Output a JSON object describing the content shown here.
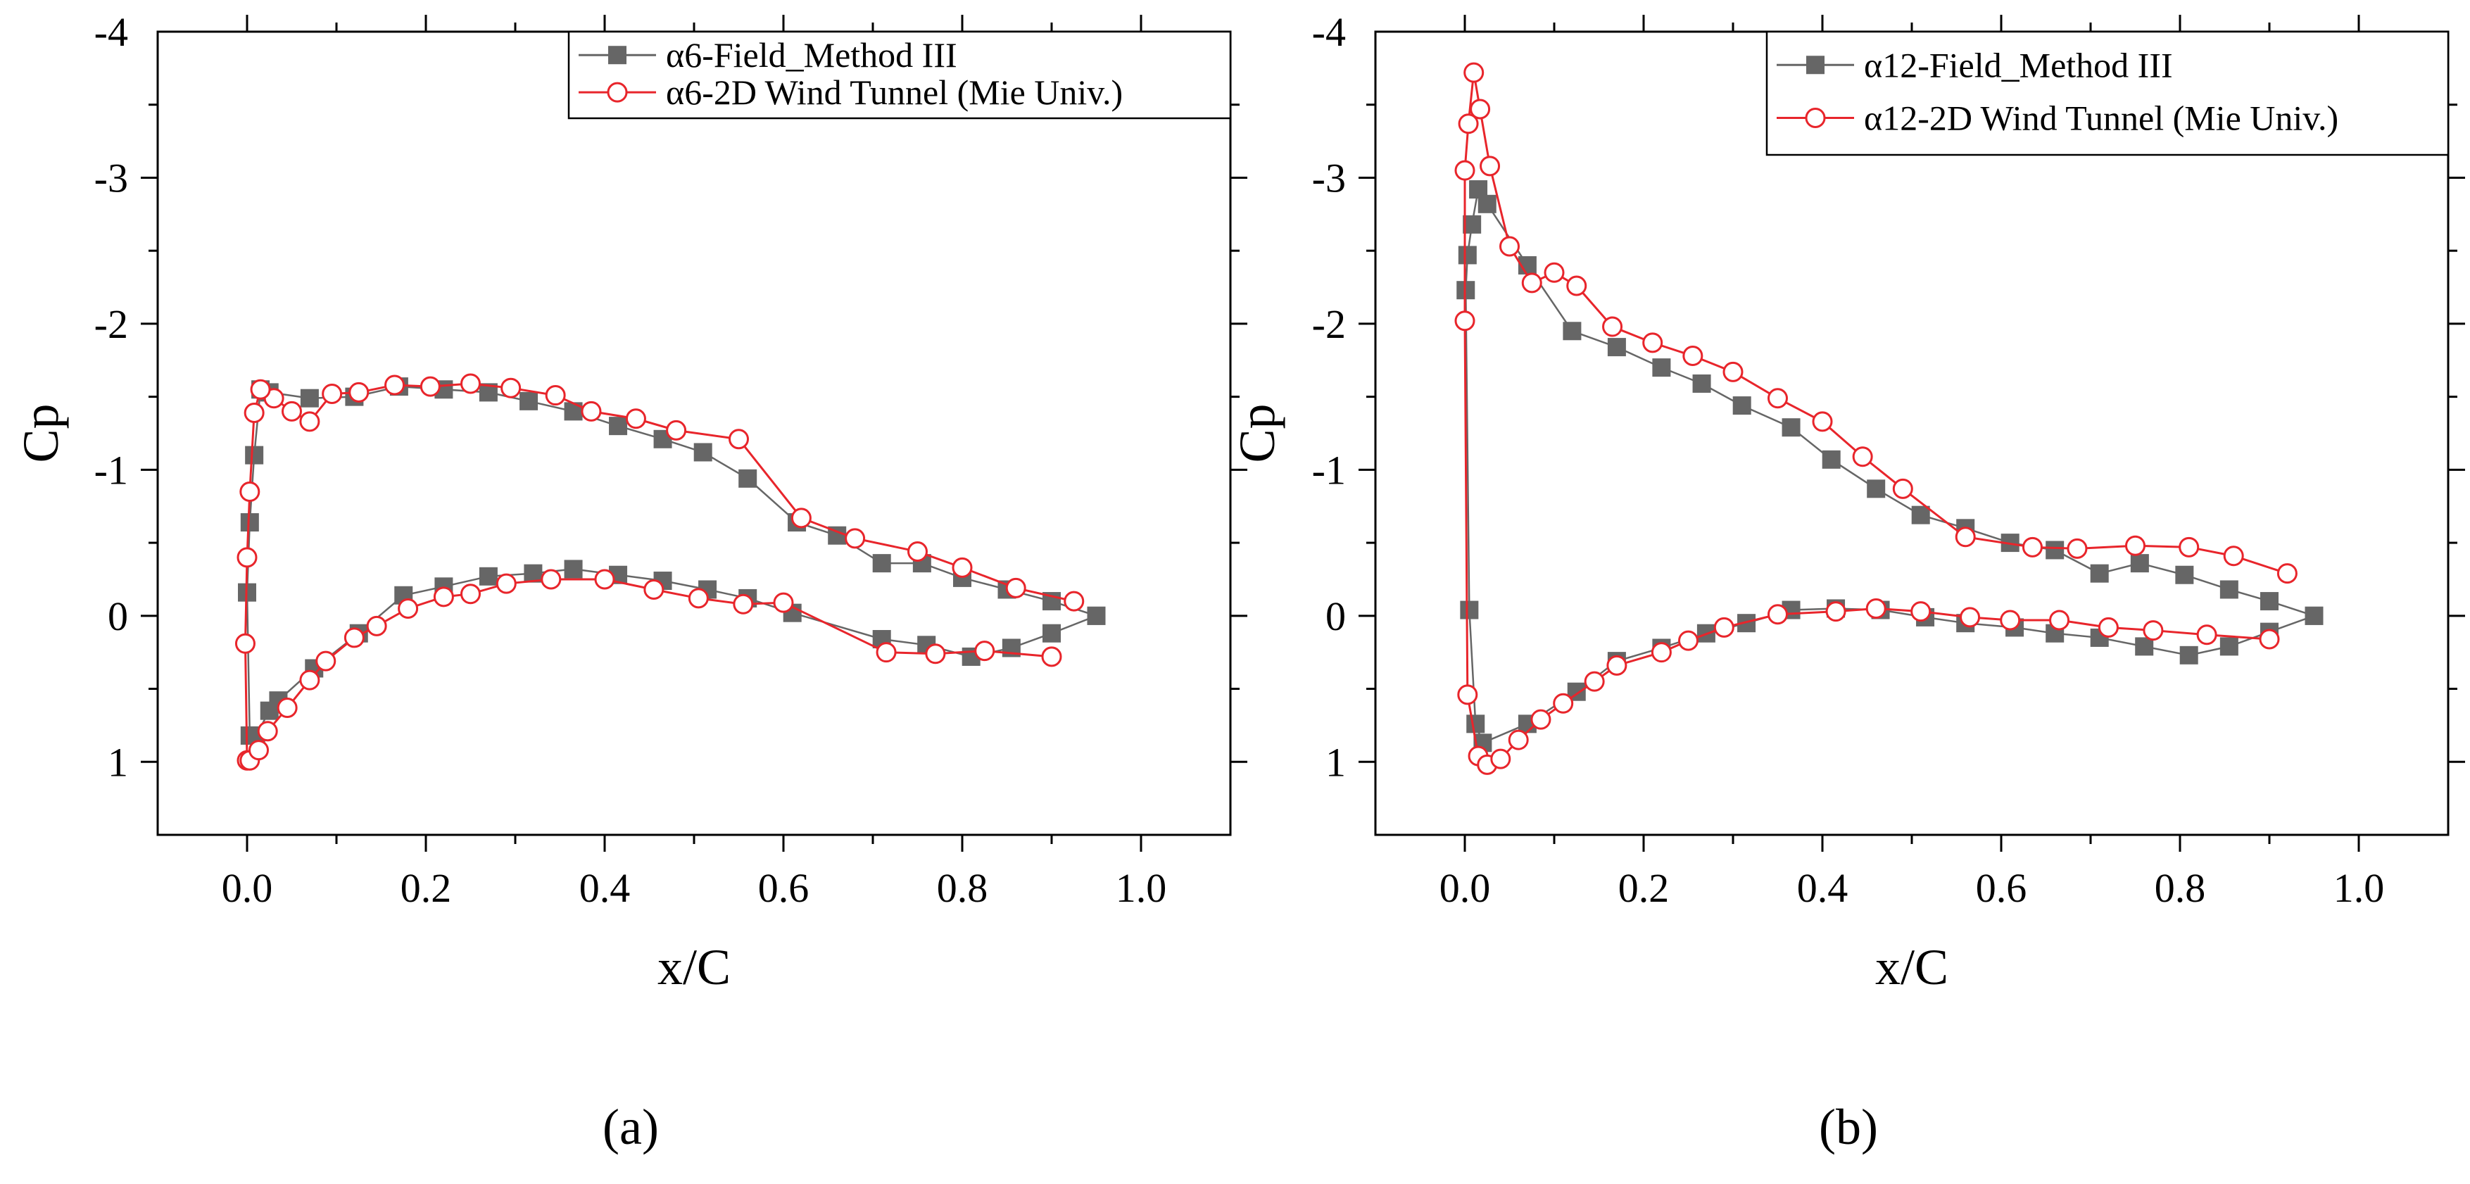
{
  "colors": {
    "field_method": "#666666",
    "wind_tunnel": "#e8252b",
    "axis": "#000000",
    "background": "#ffffff"
  },
  "chart_data": [
    {
      "type": "line",
      "caption": "(a)",
      "xlabel": "x/C",
      "ylabel": "Cp",
      "xlim": [
        -0.1,
        1.1
      ],
      "ylim": [
        1.5,
        -4
      ],
      "xticks": [
        0.0,
        0.2,
        0.4,
        0.6,
        0.8,
        1.0
      ],
      "xtick_labels": [
        "0.0",
        "0.2",
        "0.4",
        "0.6",
        "0.8",
        "1.0"
      ],
      "yticks": [
        -4,
        -3,
        -2,
        -1,
        0,
        1
      ],
      "ytick_labels": [
        "-4",
        "-3",
        "-2",
        "-1",
        "0",
        "1"
      ],
      "legend_position": "top-right",
      "series": [
        {
          "name": "α6-Field_Method III",
          "marker": "square",
          "x": [
            0.95,
            0.9,
            0.85,
            0.8,
            0.755,
            0.71,
            0.66,
            0.615,
            0.56,
            0.51,
            0.465,
            0.415,
            0.365,
            0.315,
            0.27,
            0.22,
            0.17,
            0.12,
            0.07,
            0.025,
            0.015,
            0.008,
            0.003,
            0.0,
            0.003,
            0.01,
            0.025,
            0.035,
            0.075,
            0.125,
            0.175,
            0.22,
            0.27,
            0.32,
            0.365,
            0.415,
            0.465,
            0.515,
            0.56,
            0.61,
            0.71,
            0.76,
            0.81,
            0.855,
            0.9,
            0.95
          ],
          "y": [
            0.0,
            -0.1,
            -0.18,
            -0.26,
            -0.36,
            -0.36,
            -0.55,
            -0.64,
            -0.94,
            -1.12,
            -1.21,
            -1.3,
            -1.4,
            -1.47,
            -1.53,
            -1.55,
            -1.57,
            -1.5,
            -1.49,
            -1.53,
            -1.55,
            -1.1,
            -0.64,
            -0.16,
            0.82,
            0.82,
            0.65,
            0.58,
            0.36,
            0.12,
            -0.14,
            -0.2,
            -0.27,
            -0.29,
            -0.32,
            -0.28,
            -0.24,
            -0.18,
            -0.12,
            -0.02,
            0.16,
            0.2,
            0.28,
            0.22,
            0.12,
            0.0
          ]
        },
        {
          "name": "α6-2D Wind Tunnel (Mie Univ.)",
          "marker": "circle",
          "x": [
            0.925,
            0.86,
            0.8,
            0.75,
            0.68,
            0.62,
            0.55,
            0.48,
            0.435,
            0.385,
            0.345,
            0.295,
            0.25,
            0.205,
            0.165,
            0.125,
            0.095,
            0.07,
            0.05,
            0.03,
            0.015,
            0.008,
            0.003,
            0.0,
            -0.002,
            0.0,
            0.003,
            0.013,
            0.023,
            0.045,
            0.07,
            0.088,
            0.12,
            0.145,
            0.18,
            0.22,
            0.25,
            0.29,
            0.34,
            0.4,
            0.455,
            0.505,
            0.555,
            0.6,
            0.715,
            0.77,
            0.825,
            0.9
          ],
          "y": [
            -0.1,
            -0.19,
            -0.33,
            -0.44,
            -0.53,
            -0.67,
            -1.21,
            -1.27,
            -1.35,
            -1.4,
            -1.51,
            -1.56,
            -1.59,
            -1.57,
            -1.58,
            -1.53,
            -1.52,
            -1.33,
            -1.4,
            -1.49,
            -1.55,
            -1.39,
            -0.85,
            -0.4,
            0.19,
            0.99,
            0.99,
            0.92,
            0.79,
            0.63,
            0.44,
            0.31,
            0.15,
            0.07,
            -0.05,
            -0.13,
            -0.15,
            -0.22,
            -0.25,
            -0.25,
            -0.18,
            -0.12,
            -0.08,
            -0.09,
            0.25,
            0.26,
            0.24,
            0.28
          ]
        }
      ]
    },
    {
      "type": "line",
      "caption": "(b)",
      "xlabel": "x/C",
      "ylabel": "Cp",
      "xlim": [
        -0.1,
        1.1
      ],
      "ylim": [
        1.5,
        -4
      ],
      "xticks": [
        0.0,
        0.2,
        0.4,
        0.6,
        0.8,
        1.0
      ],
      "xtick_labels": [
        "0.0",
        "0.2",
        "0.4",
        "0.6",
        "0.8",
        "1.0"
      ],
      "yticks": [
        -4,
        -3,
        -2,
        -1,
        0,
        1
      ],
      "ytick_labels": [
        "-4",
        "-3",
        "-2",
        "-1",
        "0",
        "1"
      ],
      "legend_position": "top-right",
      "series": [
        {
          "name": "α12-Field_Method III",
          "marker": "square",
          "x": [
            0.95,
            0.9,
            0.855,
            0.805,
            0.755,
            0.71,
            0.66,
            0.61,
            0.56,
            0.51,
            0.46,
            0.41,
            0.365,
            0.31,
            0.265,
            0.22,
            0.17,
            0.12,
            0.07,
            0.025,
            0.015,
            0.008,
            0.003,
            0.001,
            0.005,
            0.012,
            0.02,
            0.07,
            0.125,
            0.17,
            0.22,
            0.27,
            0.315,
            0.365,
            0.415,
            0.465,
            0.515,
            0.56,
            0.615,
            0.66,
            0.71,
            0.76,
            0.81,
            0.855,
            0.9,
            0.95
          ],
          "y": [
            0.0,
            -0.1,
            -0.18,
            -0.28,
            -0.36,
            -0.29,
            -0.45,
            -0.5,
            -0.6,
            -0.69,
            -0.87,
            -1.07,
            -1.29,
            -1.44,
            -1.59,
            -1.7,
            -1.84,
            -1.95,
            -2.4,
            -2.82,
            -2.92,
            -2.68,
            -2.47,
            -2.23,
            -0.04,
            0.74,
            0.87,
            0.74,
            0.52,
            0.31,
            0.22,
            0.12,
            0.05,
            -0.04,
            -0.05,
            -0.04,
            0.01,
            0.05,
            0.08,
            0.12,
            0.15,
            0.21,
            0.27,
            0.21,
            0.11,
            0.0
          ]
        },
        {
          "name": "α12-2D Wind Tunnel (Mie Univ.)",
          "marker": "circle",
          "x": [
            0.92,
            0.86,
            0.81,
            0.75,
            0.685,
            0.635,
            0.56,
            0.49,
            0.445,
            0.4,
            0.35,
            0.3,
            0.255,
            0.21,
            0.165,
            0.125,
            0.1,
            0.075,
            0.05,
            0.028,
            0.017,
            0.01,
            0.004,
            0.0,
            0.0,
            0.003,
            0.015,
            0.025,
            0.04,
            0.06,
            0.085,
            0.11,
            0.145,
            0.17,
            0.22,
            0.25,
            0.29,
            0.35,
            0.415,
            0.46,
            0.51,
            0.565,
            0.61,
            0.665,
            0.72,
            0.77,
            0.83,
            0.9
          ],
          "y": [
            -0.29,
            -0.41,
            -0.47,
            -0.48,
            -0.46,
            -0.47,
            -0.54,
            -0.87,
            -1.09,
            -1.33,
            -1.49,
            -1.67,
            -1.78,
            -1.87,
            -1.98,
            -2.26,
            -2.35,
            -2.28,
            -2.53,
            -3.08,
            -3.47,
            -3.72,
            -3.37,
            -3.05,
            -2.02,
            0.54,
            0.96,
            1.02,
            0.98,
            0.85,
            0.71,
            0.6,
            0.45,
            0.34,
            0.25,
            0.17,
            0.08,
            -0.01,
            -0.03,
            -0.05,
            -0.03,
            0.01,
            0.03,
            0.03,
            0.08,
            0.1,
            0.13,
            0.16
          ]
        }
      ]
    }
  ]
}
